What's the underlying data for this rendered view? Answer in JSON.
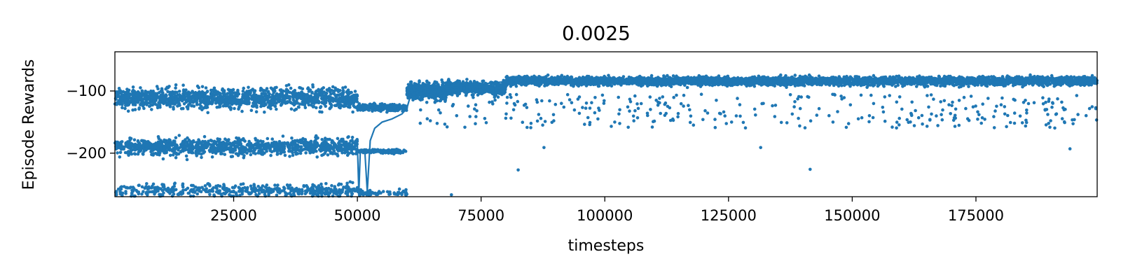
{
  "chart_data": {
    "type": "scatter",
    "title": "0.0025",
    "xlabel": "timesteps",
    "ylabel": "Episode Rewards",
    "xlim": [
      1000,
      199500
    ],
    "ylim": [
      -270,
      -37
    ],
    "xticks": [
      25000,
      50000,
      75000,
      100000,
      125000,
      150000,
      175000
    ],
    "xtick_labels": [
      "25000",
      "50000",
      "75000",
      "100000",
      "125000",
      "150000",
      "175000"
    ],
    "yticks": [
      -100,
      -200
    ],
    "ytick_labels": [
      "−100",
      "−200"
    ],
    "grid": false,
    "legend": "none",
    "series": [
      {
        "kind": "scatter",
        "color": "#1f77b4",
        "bands": [
          {
            "x_range": [
              1000,
              50000
            ],
            "center": -112,
            "spread": 14,
            "count": 1400
          },
          {
            "x_range": [
              1000,
              50000
            ],
            "center": -190,
            "spread": 12,
            "count": 1100
          },
          {
            "x_range": [
              1000,
              50000
            ],
            "center": -260,
            "spread": 9,
            "count": 500
          },
          {
            "x_range": [
              50000,
              60000
            ],
            "center": -127,
            "spread": 5,
            "count": 260
          },
          {
            "x_range": [
              50000,
              60000
            ],
            "center": -197,
            "spread": 3,
            "count": 180
          },
          {
            "x_range": [
              50000,
              60000
            ],
            "center": -264,
            "spread": 4,
            "count": 60
          },
          {
            "x_range": [
              60000,
              68000
            ],
            "center": -100,
            "spread": 12,
            "count": 600
          },
          {
            "x_range": [
              68000,
              80000
            ],
            "center": -95,
            "spread": 9,
            "count": 600
          },
          {
            "x_range": [
              80000,
              199500
            ],
            "center": -84,
            "spread": 6,
            "count": 4200
          }
        ],
        "outliers_x_range": [
          62000,
          199500
        ],
        "outliers_y_range": [
          -160,
          -105
        ],
        "outliers_count": 340,
        "extra_points": [
          [
            82500,
            -227
          ],
          [
            87700,
            -191
          ],
          [
            131500,
            -191
          ],
          [
            141500,
            -226
          ],
          [
            194000,
            -193
          ],
          [
            69000,
            -267
          ],
          [
            60000,
            -266
          ]
        ]
      },
      {
        "kind": "line",
        "color": "#1f77b4",
        "points": [
          [
            50000,
            -186
          ],
          [
            50300,
            -265
          ],
          [
            50600,
            -195
          ],
          [
            51500,
            -196
          ],
          [
            52000,
            -262
          ],
          [
            52600,
            -180
          ],
          [
            53500,
            -160
          ],
          [
            55000,
            -150
          ],
          [
            57000,
            -145
          ],
          [
            59000,
            -137
          ],
          [
            60000,
            -128
          ],
          [
            61000,
            -100
          ],
          [
            64000,
            -95
          ],
          [
            68000,
            -93
          ],
          [
            72000,
            -90
          ],
          [
            76000,
            -88
          ],
          [
            80000,
            -85
          ]
        ]
      }
    ]
  }
}
